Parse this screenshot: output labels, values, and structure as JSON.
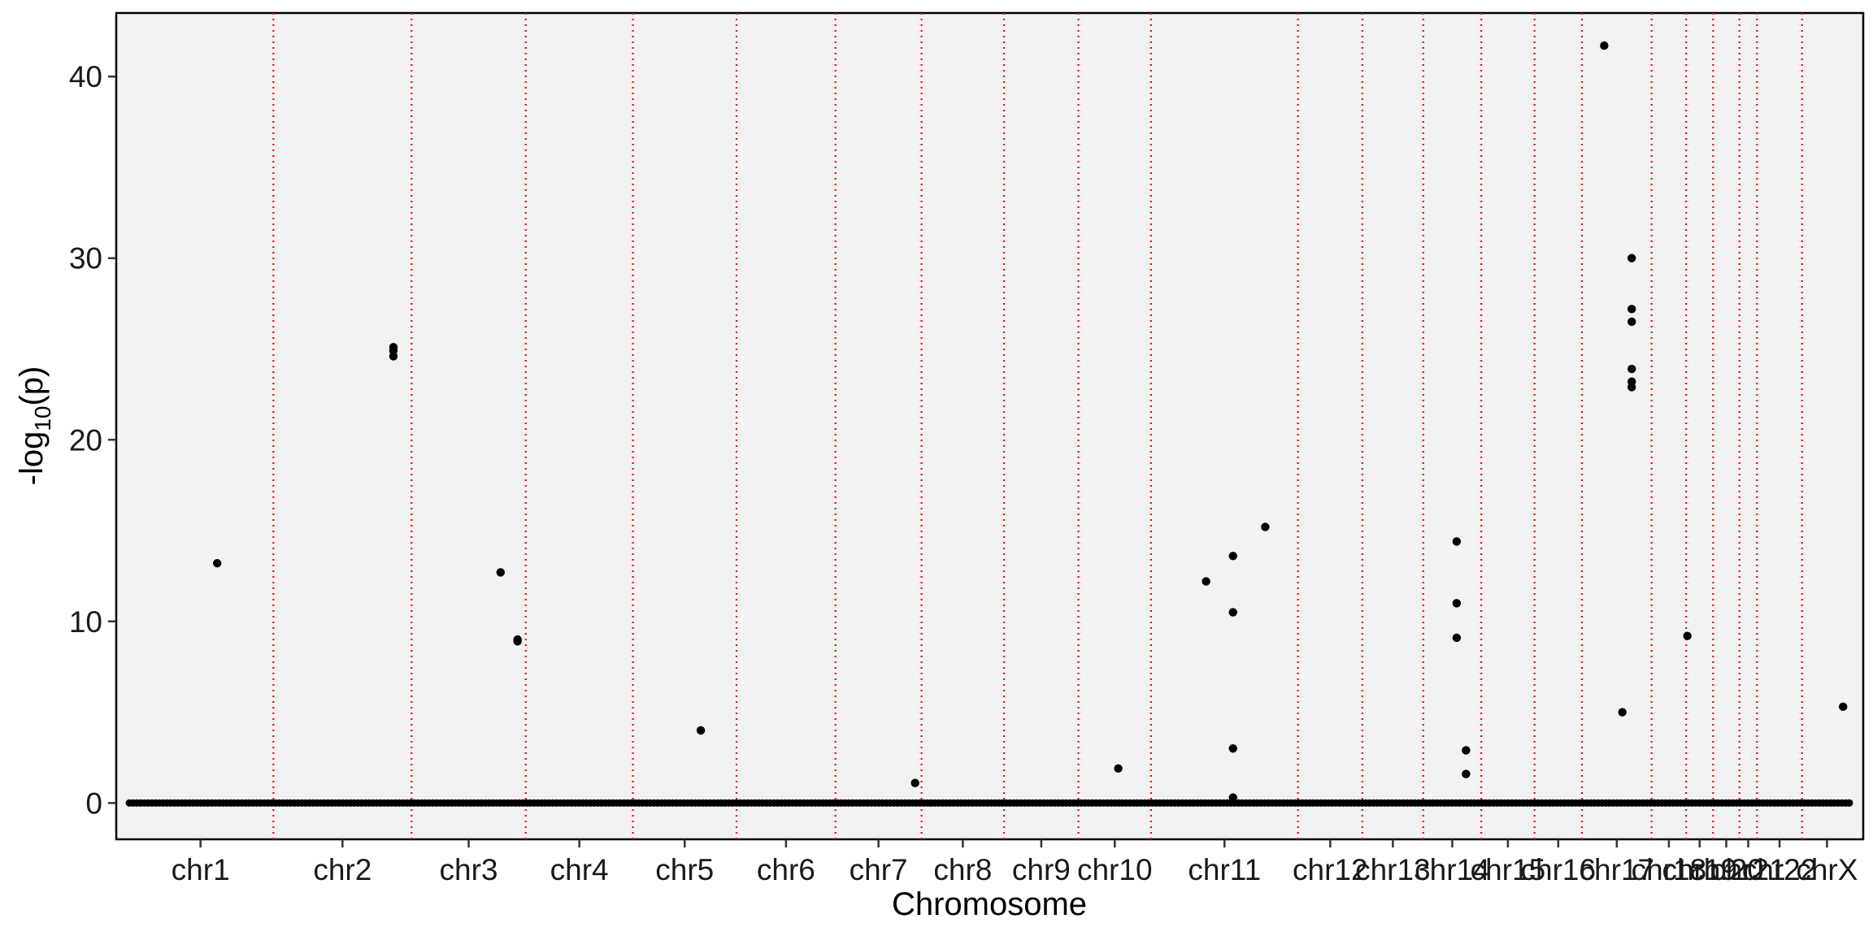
{
  "chart_data": {
    "type": "scatter",
    "title": "",
    "xlabel": "Chromosome",
    "ylabel_main": "-log",
    "ylabel_sub": "10",
    "ylabel_tail": "(p)",
    "ylim": [
      -2,
      43.5
    ],
    "y_ticks": [
      0,
      10,
      20,
      30,
      40
    ],
    "grid": false,
    "colors": {
      "panel": "#f2f2f2",
      "point": "#000000",
      "boundary": "#ff0000"
    },
    "chromosomes": [
      {
        "name": "chr1",
        "start": 0,
        "end": 249
      },
      {
        "name": "chr2",
        "start": 249,
        "end": 485
      },
      {
        "name": "chr3",
        "start": 485,
        "end": 680
      },
      {
        "name": "chr4",
        "start": 680,
        "end": 863
      },
      {
        "name": "chr5",
        "start": 863,
        "end": 1040
      },
      {
        "name": "chr6",
        "start": 1040,
        "end": 1209
      },
      {
        "name": "chr7",
        "start": 1209,
        "end": 1356
      },
      {
        "name": "chr8",
        "start": 1356,
        "end": 1497
      },
      {
        "name": "chr9",
        "start": 1497,
        "end": 1624
      },
      {
        "name": "chr10",
        "start": 1624,
        "end": 1748
      },
      {
        "name": "chr11",
        "start": 1748,
        "end": 1999
      },
      {
        "name": "chr12",
        "start": 1999,
        "end": 2109
      },
      {
        "name": "chr13",
        "start": 2109,
        "end": 2213
      },
      {
        "name": "chr14",
        "start": 2213,
        "end": 2312
      },
      {
        "name": "chr15",
        "start": 2312,
        "end": 2403
      },
      {
        "name": "chr16",
        "start": 2403,
        "end": 2484
      },
      {
        "name": "chr17",
        "start": 2484,
        "end": 2603
      },
      {
        "name": "chr18",
        "start": 2603,
        "end": 2662
      },
      {
        "name": "chr19",
        "start": 2662,
        "end": 2708
      },
      {
        "name": "chr20",
        "start": 2708,
        "end": 2753
      },
      {
        "name": "chr21",
        "start": 2753,
        "end": 2783
      },
      {
        "name": "chr22",
        "start": 2783,
        "end": 2860
      },
      {
        "name": "chrX",
        "start": 2860,
        "end": 2945
      }
    ],
    "points": [
      {
        "x": 153,
        "y": 13.2
      },
      {
        "x": 454,
        "y": 25.1
      },
      {
        "x": 454,
        "y": 24.9
      },
      {
        "x": 454,
        "y": 24.6
      },
      {
        "x": 637,
        "y": 12.7
      },
      {
        "x": 666,
        "y": 9.0
      },
      {
        "x": 666,
        "y": 8.9
      },
      {
        "x": 979,
        "y": 4.0
      },
      {
        "x": 1345,
        "y": 1.1
      },
      {
        "x": 1692,
        "y": 1.9
      },
      {
        "x": 1842,
        "y": 12.2
      },
      {
        "x": 1888,
        "y": 13.6
      },
      {
        "x": 1888,
        "y": 10.5
      },
      {
        "x": 1888,
        "y": 3.0
      },
      {
        "x": 1888,
        "y": 0.3
      },
      {
        "x": 1943,
        "y": 15.2
      },
      {
        "x": 2270,
        "y": 14.4
      },
      {
        "x": 2270,
        "y": 11.0
      },
      {
        "x": 2270,
        "y": 9.1
      },
      {
        "x": 2286,
        "y": 2.9
      },
      {
        "x": 2286,
        "y": 1.6
      },
      {
        "x": 2522,
        "y": 41.7
      },
      {
        "x": 2553,
        "y": 5.0
      },
      {
        "x": 2569,
        "y": 30.0
      },
      {
        "x": 2569,
        "y": 27.2
      },
      {
        "x": 2569,
        "y": 26.5
      },
      {
        "x": 2569,
        "y": 23.9
      },
      {
        "x": 2569,
        "y": 23.2
      },
      {
        "x": 2569,
        "y": 22.9
      },
      {
        "x": 2664,
        "y": 9.2
      },
      {
        "x": 2930,
        "y": 5.3
      }
    ]
  }
}
